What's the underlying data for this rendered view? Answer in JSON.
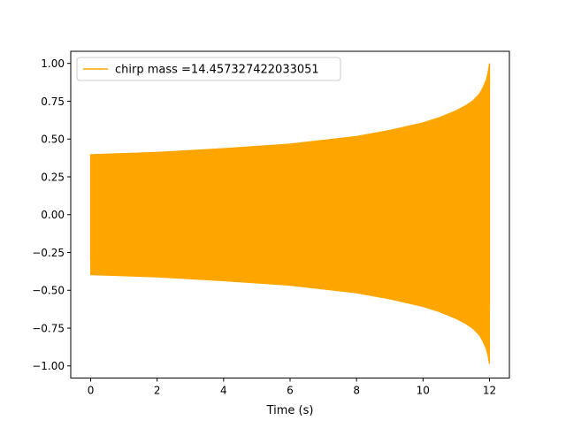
{
  "chart_data": {
    "type": "line",
    "title": "",
    "xlabel": "Time (s)",
    "ylabel": "",
    "xlim": [
      -0.6,
      12.6
    ],
    "ylim": [
      -1.08,
      1.08
    ],
    "x_ticks": [
      0,
      2,
      4,
      6,
      8,
      10,
      12
    ],
    "x_tick_labels": [
      "0",
      "2",
      "4",
      "6",
      "8",
      "10",
      "12"
    ],
    "y_ticks": [
      -1.0,
      -0.75,
      -0.5,
      -0.25,
      0.0,
      0.25,
      0.5,
      0.75,
      1.0
    ],
    "y_tick_labels": [
      "−1.00",
      "−0.75",
      "−0.50",
      "−0.25",
      "0.00",
      "0.25",
      "0.50",
      "0.75",
      "1.00"
    ],
    "grid": false,
    "legend_position": "upper-left",
    "series": [
      {
        "name": "chirp mass =14.457327422033051",
        "color": "#FFA500",
        "x_start": 0,
        "x_end": 12,
        "initial_value": -0.3,
        "envelope": {
          "t": [
            0,
            2,
            4,
            6,
            8,
            9,
            10,
            10.5,
            11,
            11.3,
            11.5,
            11.7,
            11.8,
            11.9,
            11.95,
            12
          ],
          "amplitude": [
            0.4,
            0.415,
            0.44,
            0.47,
            0.52,
            0.56,
            0.61,
            0.645,
            0.69,
            0.725,
            0.755,
            0.8,
            0.84,
            0.89,
            0.935,
            1.0
          ]
        }
      }
    ]
  }
}
